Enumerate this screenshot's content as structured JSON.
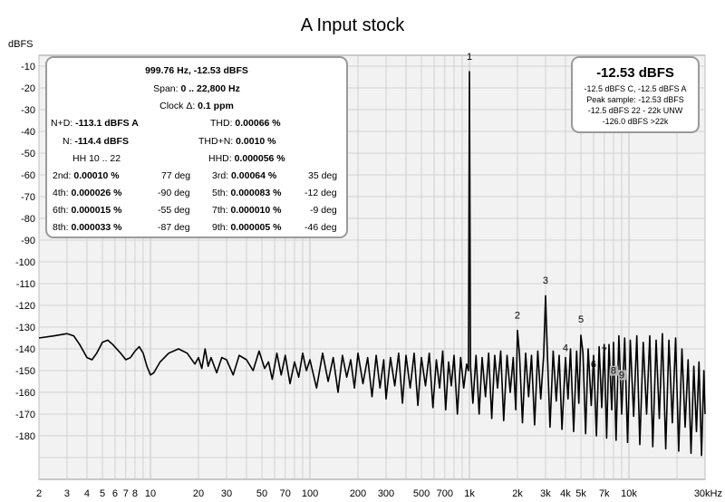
{
  "colors": {
    "background": "#ffffff",
    "plot_bg": "#f2f2f2",
    "grid": "#c9c9c9",
    "trace": "#000000",
    "box_border": "#9a9a9a",
    "marker_bg": "#b8b8b8"
  },
  "chart_data": {
    "type": "line",
    "title": "A Input stock",
    "ylabel": "dBFS",
    "xscale": "log",
    "xlim": [
      2,
      30000
    ],
    "ylim": [
      -200,
      -5
    ],
    "y_ticks": [
      -10,
      -20,
      -30,
      -40,
      -50,
      -60,
      -70,
      -80,
      -90,
      -100,
      -110,
      -120,
      -130,
      -140,
      -150,
      -160,
      -170,
      -180
    ],
    "x_ticks": [
      {
        "v": 2,
        "label": "2"
      },
      {
        "v": 3,
        "label": "3"
      },
      {
        "v": 4,
        "label": "4"
      },
      {
        "v": 5,
        "label": "5"
      },
      {
        "v": 6,
        "label": "6"
      },
      {
        "v": 7,
        "label": "7"
      },
      {
        "v": 8,
        "label": "8"
      },
      {
        "v": 10,
        "label": "10"
      },
      {
        "v": 20,
        "label": "20"
      },
      {
        "v": 30,
        "label": "30"
      },
      {
        "v": 50,
        "label": "50"
      },
      {
        "v": 70,
        "label": "70"
      },
      {
        "v": 100,
        "label": "100"
      },
      {
        "v": 200,
        "label": "200"
      },
      {
        "v": 300,
        "label": "300"
      },
      {
        "v": 500,
        "label": "500"
      },
      {
        "v": 700,
        "label": "700"
      },
      {
        "v": 1000,
        "label": "1k"
      },
      {
        "v": 2000,
        "label": "2k"
      },
      {
        "v": 3000,
        "label": "3k"
      },
      {
        "v": 4000,
        "label": "4k"
      },
      {
        "v": 5000,
        "label": "5k"
      },
      {
        "v": 7000,
        "label": "7k"
      },
      {
        "v": 10000,
        "label": "10k"
      },
      {
        "v": 30000,
        "label": "30kHz"
      }
    ],
    "series": [
      {
        "name": "",
        "points": [
          [
            2,
            -135
          ],
          [
            2.5,
            -134
          ],
          [
            3,
            -133
          ],
          [
            3.3,
            -134
          ],
          [
            3.6,
            -138
          ],
          [
            4,
            -144
          ],
          [
            4.3,
            -145
          ],
          [
            4.6,
            -142
          ],
          [
            5,
            -137
          ],
          [
            5.4,
            -136
          ],
          [
            5.8,
            -138
          ],
          [
            6.5,
            -142
          ],
          [
            7,
            -145
          ],
          [
            7.5,
            -144
          ],
          [
            8,
            -141
          ],
          [
            8.5,
            -139
          ],
          [
            9,
            -142
          ],
          [
            9.5,
            -148
          ],
          [
            10,
            -152
          ],
          [
            10.5,
            -151
          ],
          [
            11.5,
            -146
          ],
          [
            13,
            -142
          ],
          [
            15,
            -140
          ],
          [
            17,
            -142
          ],
          [
            19,
            -147
          ],
          [
            20,
            -144
          ],
          [
            21,
            -149
          ],
          [
            22,
            -140
          ],
          [
            23,
            -148
          ],
          [
            24,
            -144
          ],
          [
            26,
            -151
          ],
          [
            28,
            -144
          ],
          [
            30,
            -145
          ],
          [
            33,
            -152
          ],
          [
            36,
            -143
          ],
          [
            40,
            -145
          ],
          [
            44,
            -150
          ],
          [
            48,
            -141
          ],
          [
            52,
            -149
          ],
          [
            55,
            -146
          ],
          [
            58,
            -154
          ],
          [
            62,
            -142
          ],
          [
            66,
            -152
          ],
          [
            70,
            -143
          ],
          [
            75,
            -156
          ],
          [
            80,
            -146
          ],
          [
            85,
            -153
          ],
          [
            90,
            -142
          ],
          [
            95,
            -150
          ],
          [
            100,
            -145
          ],
          [
            110,
            -158
          ],
          [
            120,
            -142
          ],
          [
            130,
            -155
          ],
          [
            140,
            -144
          ],
          [
            150,
            -160
          ],
          [
            160,
            -143
          ],
          [
            170,
            -153
          ],
          [
            180,
            -145
          ],
          [
            190,
            -158
          ],
          [
            200,
            -142
          ],
          [
            215,
            -156
          ],
          [
            230,
            -144
          ],
          [
            245,
            -162
          ],
          [
            260,
            -143
          ],
          [
            275,
            -158
          ],
          [
            290,
            -145
          ],
          [
            300,
            -163
          ],
          [
            320,
            -144
          ],
          [
            340,
            -157
          ],
          [
            360,
            -142
          ],
          [
            380,
            -165
          ],
          [
            400,
            -143
          ],
          [
            425,
            -158
          ],
          [
            450,
            -142
          ],
          [
            475,
            -166
          ],
          [
            500,
            -144
          ],
          [
            530,
            -157
          ],
          [
            560,
            -142
          ],
          [
            590,
            -167
          ],
          [
            620,
            -145
          ],
          [
            650,
            -158
          ],
          [
            680,
            -141
          ],
          [
            710,
            -168
          ],
          [
            740,
            -146
          ],
          [
            770,
            -157
          ],
          [
            800,
            -143
          ],
          [
            840,
            -170
          ],
          [
            880,
            -144
          ],
          [
            920,
            -158
          ],
          [
            960,
            -147
          ],
          [
            985,
            -150
          ],
          [
            999.76,
            -12.53
          ],
          [
            1015,
            -148
          ],
          [
            1050,
            -165
          ],
          [
            1100,
            -143
          ],
          [
            1150,
            -170
          ],
          [
            1200,
            -144
          ],
          [
            1260,
            -162
          ],
          [
            1320,
            -142
          ],
          [
            1380,
            -172
          ],
          [
            1440,
            -143
          ],
          [
            1500,
            -158
          ],
          [
            1570,
            -141
          ],
          [
            1640,
            -173
          ],
          [
            1720,
            -143
          ],
          [
            1800,
            -160
          ],
          [
            1880,
            -144
          ],
          [
            1950,
            -168
          ],
          [
            1999.5,
            -131.5
          ],
          [
            2060,
            -143
          ],
          [
            2150,
            -174
          ],
          [
            2250,
            -142
          ],
          [
            2350,
            -162
          ],
          [
            2450,
            -143
          ],
          [
            2560,
            -175
          ],
          [
            2680,
            -141
          ],
          [
            2800,
            -163
          ],
          [
            2920,
            -143
          ],
          [
            2999.3,
            -115.6
          ],
          [
            3080,
            -142
          ],
          [
            3200,
            -176
          ],
          [
            3350,
            -141
          ],
          [
            3500,
            -164
          ],
          [
            3650,
            -143
          ],
          [
            3800,
            -177
          ],
          [
            3999,
            -144
          ],
          [
            4150,
            -163
          ],
          [
            4300,
            -140
          ],
          [
            4500,
            -178
          ],
          [
            4700,
            -141
          ],
          [
            4850,
            -165
          ],
          [
            4999,
            -133.7
          ],
          [
            5150,
            -142
          ],
          [
            5350,
            -179
          ],
          [
            5550,
            -140
          ],
          [
            5800,
            -166
          ],
          [
            5999,
            -143
          ],
          [
            6250,
            -180
          ],
          [
            6500,
            -139
          ],
          [
            6750,
            -167
          ],
          [
            6998,
            -138
          ],
          [
            7250,
            -181
          ],
          [
            7500,
            -138
          ],
          [
            7800,
            -168
          ],
          [
            7998,
            -137
          ],
          [
            8300,
            -182
          ],
          [
            8650,
            -134
          ],
          [
            9000,
            -170
          ],
          [
            9400,
            -135
          ],
          [
            9800,
            -183
          ],
          [
            10200,
            -136
          ],
          [
            10700,
            -171
          ],
          [
            11200,
            -134
          ],
          [
            11700,
            -184
          ],
          [
            12300,
            -137
          ],
          [
            12900,
            -170
          ],
          [
            13500,
            -134
          ],
          [
            14100,
            -185
          ],
          [
            14800,
            -136
          ],
          [
            15500,
            -172
          ],
          [
            16200,
            -133
          ],
          [
            17000,
            -186
          ],
          [
            17800,
            -136
          ],
          [
            18700,
            -174
          ],
          [
            19600,
            -135
          ],
          [
            20500,
            -187
          ],
          [
            21500,
            -140
          ],
          [
            22500,
            -176
          ],
          [
            23500,
            -145
          ],
          [
            24500,
            -188
          ],
          [
            25500,
            -148
          ],
          [
            26500,
            -178
          ],
          [
            27500,
            -146
          ],
          [
            28500,
            -189
          ],
          [
            29500,
            -150
          ],
          [
            30000,
            -170
          ]
        ]
      }
    ],
    "harmonic_markers": [
      {
        "label": "1",
        "x": 999.76,
        "y": -7
      },
      {
        "label": "2",
        "x": 1999.5,
        "y": -126
      },
      {
        "label": "3",
        "x": 2999.3,
        "y": -110
      },
      {
        "label": "4",
        "x": 3999,
        "y": -141
      },
      {
        "label": "5",
        "x": 4999,
        "y": -128
      },
      {
        "label": "6",
        "x": 5999,
        "y": -148.5
      },
      {
        "label": "7",
        "x": 6998,
        "y": -142.5
      },
      {
        "label": "8",
        "x": 7998,
        "y": -151.5
      },
      {
        "label": "9",
        "x": 8998,
        "y": -153.5
      }
    ]
  },
  "info_left": {
    "line1": "999.76 Hz, -12.53 dBFS",
    "span_label": "Span: ",
    "span_value": "0 .. 22,800 Hz",
    "clock_label": "Clock Δ: ",
    "clock_value": "0.1 ppm",
    "nd_label": "N+D: ",
    "nd_value": "-113.1 dBFS A",
    "thd_label": "THD: ",
    "thd_value": "0.00066 %",
    "n_label": "N: ",
    "n_value": "-114.4 dBFS",
    "thdn_label": "THD+N: ",
    "thdn_value": "0.0010 %",
    "hh_label": "HH 10 .. 22",
    "hhd_label": "HHD: ",
    "hhd_value": "0.000056 %",
    "h2_label": "2nd: ",
    "h2_value": "0.00010 %",
    "h2_deg": "77 deg",
    "h3_label": "3rd: ",
    "h3_value": "0.00064 %",
    "h3_deg": "35 deg",
    "h4_label": "4th: ",
    "h4_value": "0.000026 %",
    "h4_deg": "-90 deg",
    "h5_label": "5th: ",
    "h5_value": "0.000083 %",
    "h5_deg": "-12 deg",
    "h6_label": "6th: ",
    "h6_value": "0.000015 %",
    "h6_deg": "-55 deg",
    "h7_label": "7th: ",
    "h7_value": "0.000010 %",
    "h7_deg": "-9 deg",
    "h8_label": "8th: ",
    "h8_value": "0.000033 %",
    "h8_deg": "-87 deg",
    "h9_label": "9th: ",
    "h9_value": "0.000005 %",
    "h9_deg": "-46 deg"
  },
  "info_right": {
    "level": "-12.53 dBFS",
    "l1": "-12.5 dBFS C, -12.5 dBFS A",
    "l2": "Peak sample: -12.53 dBFS",
    "l3": "-12.5 dBFS 22 - 22k UNW",
    "l4": "-126.0 dBFS >22k"
  }
}
